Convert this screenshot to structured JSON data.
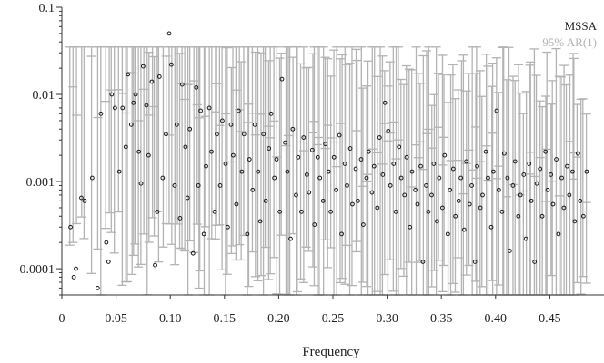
{
  "chart_data": {
    "type": "scatter",
    "title": "",
    "xlabel": "Frequency",
    "ylabel": "",
    "xlim": [
      0,
      0.5
    ],
    "ylim": [
      5e-05,
      0.1
    ],
    "yscale": "log",
    "grid": false,
    "legend_position": "top-right",
    "x_ticks": [
      {
        "value": 0,
        "label": "0"
      },
      {
        "value": 0.05,
        "label": "0.05"
      },
      {
        "value": 0.1,
        "label": "0.10"
      },
      {
        "value": 0.15,
        "label": "0.15"
      },
      {
        "value": 0.2,
        "label": "0.20"
      },
      {
        "value": 0.25,
        "label": "0.25"
      },
      {
        "value": 0.3,
        "label": "0.30"
      },
      {
        "value": 0.35,
        "label": "0.35"
      },
      {
        "value": 0.4,
        "label": "0.40"
      },
      {
        "value": 0.45,
        "label": "0.45"
      }
    ],
    "y_ticks": [
      {
        "value": 0.1,
        "label": "0.1"
      },
      {
        "value": 0.01,
        "label": "0.01"
      },
      {
        "value": 0.001,
        "label": "0.001"
      },
      {
        "value": 0.0001,
        "label": "0.0001"
      }
    ],
    "series": [
      {
        "name": "MSSA",
        "color": "#1a1a1a",
        "marker": "open-circle",
        "points": [
          [
            0.008,
            0.0003
          ],
          [
            0.011,
            8e-05
          ],
          [
            0.013,
            0.0001
          ],
          [
            0.018,
            0.00065
          ],
          [
            0.021,
            0.0006
          ],
          [
            0.028,
            0.0011
          ],
          [
            0.033,
            6e-05
          ],
          [
            0.036,
            0.006
          ],
          [
            0.041,
            0.0002
          ],
          [
            0.043,
            0.00012
          ],
          [
            0.046,
            0.01
          ],
          [
            0.049,
            0.007
          ],
          [
            0.053,
            0.0013
          ],
          [
            0.056,
            0.007
          ],
          [
            0.059,
            0.0025
          ],
          [
            0.061,
            0.017
          ],
          [
            0.064,
            0.0045
          ],
          [
            0.066,
            0.008
          ],
          [
            0.068,
            0.01
          ],
          [
            0.071,
            0.0022
          ],
          [
            0.073,
            0.00095
          ],
          [
            0.075,
            0.021
          ],
          [
            0.078,
            0.0075
          ],
          [
            0.08,
            0.002
          ],
          [
            0.083,
            0.014
          ],
          [
            0.086,
            0.00011
          ],
          [
            0.088,
            0.00045
          ],
          [
            0.09,
            0.016
          ],
          [
            0.093,
            0.0011
          ],
          [
            0.096,
            0.0035
          ],
          [
            0.099,
            0.05
          ],
          [
            0.101,
            0.022
          ],
          [
            0.104,
            0.0009
          ],
          [
            0.106,
            0.0045
          ],
          [
            0.109,
            0.00038
          ],
          [
            0.111,
            0.013
          ],
          [
            0.114,
            0.0025
          ],
          [
            0.116,
            0.00065
          ],
          [
            0.118,
            0.004
          ],
          [
            0.121,
            0.00015
          ],
          [
            0.124,
            0.012
          ],
          [
            0.126,
            0.0009
          ],
          [
            0.128,
            0.0065
          ],
          [
            0.131,
            0.00025
          ],
          [
            0.133,
            0.0015
          ],
          [
            0.136,
            0.007
          ],
          [
            0.138,
            0.0022
          ],
          [
            0.141,
            0.00045
          ],
          [
            0.143,
            0.0035
          ],
          [
            0.146,
            0.0009
          ],
          [
            0.148,
            0.005
          ],
          [
            0.151,
            0.0016
          ],
          [
            0.153,
            0.0003
          ],
          [
            0.156,
            0.0045
          ],
          [
            0.158,
            0.002
          ],
          [
            0.161,
            0.00055
          ],
          [
            0.163,
            0.0065
          ],
          [
            0.166,
            0.0013
          ],
          [
            0.168,
            0.0035
          ],
          [
            0.171,
            0.00025
          ],
          [
            0.173,
            0.0018
          ],
          [
            0.176,
            0.0008
          ],
          [
            0.178,
            0.0045
          ],
          [
            0.181,
            0.0013
          ],
          [
            0.183,
            0.00035
          ],
          [
            0.186,
            0.0035
          ],
          [
            0.188,
            0.0006
          ],
          [
            0.191,
            0.0024
          ],
          [
            0.193,
            0.006
          ],
          [
            0.196,
            0.0011
          ],
          [
            0.198,
            0.0018
          ],
          [
            0.201,
            0.00045
          ],
          [
            0.203,
            0.015
          ],
          [
            0.206,
            0.0028
          ],
          [
            0.208,
            0.0013
          ],
          [
            0.211,
            0.00022
          ],
          [
            0.213,
            0.004
          ],
          [
            0.216,
            0.0007
          ],
          [
            0.218,
            0.0019
          ],
          [
            0.221,
            0.00045
          ],
          [
            0.223,
            0.0032
          ],
          [
            0.226,
            0.0012
          ],
          [
            0.228,
            0.00075
          ],
          [
            0.231,
            0.0023
          ],
          [
            0.233,
            0.00032
          ],
          [
            0.236,
            0.0019
          ],
          [
            0.238,
            0.0011
          ],
          [
            0.241,
            0.0006
          ],
          [
            0.243,
            0.0027
          ],
          [
            0.246,
            0.0013
          ],
          [
            0.248,
            0.00045
          ],
          [
            0.251,
            0.0019
          ],
          [
            0.253,
            0.0008
          ],
          [
            0.256,
            0.0034
          ],
          [
            0.258,
            0.00025
          ],
          [
            0.261,
            0.0016
          ],
          [
            0.263,
            0.0009
          ],
          [
            0.266,
            0.0024
          ],
          [
            0.268,
            0.00055
          ],
          [
            0.271,
            0.0014
          ],
          [
            0.273,
            0.0006
          ],
          [
            0.276,
            0.0018
          ],
          [
            0.278,
            0.00032
          ],
          [
            0.281,
            0.0011
          ],
          [
            0.283,
            0.0022
          ],
          [
            0.286,
            0.00075
          ],
          [
            0.288,
            0.0015
          ],
          [
            0.291,
            0.0005
          ],
          [
            0.293,
            0.0032
          ],
          [
            0.296,
            0.0012
          ],
          [
            0.298,
            0.008
          ],
          [
            0.301,
            0.0038
          ],
          [
            0.303,
            0.0009
          ],
          [
            0.306,
            0.0016
          ],
          [
            0.308,
            0.00045
          ],
          [
            0.311,
            0.0025
          ],
          [
            0.313,
            0.0011
          ],
          [
            0.316,
            0.0007
          ],
          [
            0.318,
            0.0019
          ],
          [
            0.321,
            0.0003
          ],
          [
            0.323,
            0.0013
          ],
          [
            0.326,
            0.0008
          ],
          [
            0.328,
            0.00055
          ],
          [
            0.331,
            0.0015
          ],
          [
            0.333,
            0.00012
          ],
          [
            0.336,
            0.0009
          ],
          [
            0.338,
            0.00045
          ],
          [
            0.341,
            0.0007
          ],
          [
            0.343,
            0.0016
          ],
          [
            0.346,
            0.00035
          ],
          [
            0.348,
            0.0011
          ],
          [
            0.351,
            0.0005
          ],
          [
            0.353,
            0.002
          ],
          [
            0.356,
            0.00025
          ],
          [
            0.358,
            0.0008
          ],
          [
            0.361,
            0.0014
          ],
          [
            0.363,
            0.0004
          ],
          [
            0.366,
            0.0006
          ],
          [
            0.368,
            0.0011
          ],
          [
            0.371,
            0.00028
          ],
          [
            0.373,
            0.0017
          ],
          [
            0.376,
            0.00055
          ],
          [
            0.378,
            0.0009
          ],
          [
            0.381,
            0.00012
          ],
          [
            0.383,
            0.0015
          ],
          [
            0.386,
            0.0005
          ],
          [
            0.388,
            0.0007
          ],
          [
            0.391,
            0.0022
          ],
          [
            0.393,
            0.0011
          ],
          [
            0.396,
            0.0003
          ],
          [
            0.398,
            0.0013
          ],
          [
            0.401,
            0.0065
          ],
          [
            0.403,
            0.0008
          ],
          [
            0.406,
            0.00045
          ],
          [
            0.408,
            0.0021
          ],
          [
            0.411,
            0.0011
          ],
          [
            0.413,
            0.00016
          ],
          [
            0.416,
            0.0009
          ],
          [
            0.418,
            0.0017
          ],
          [
            0.421,
            0.0004
          ],
          [
            0.423,
            0.0007
          ],
          [
            0.426,
            0.0012
          ],
          [
            0.428,
            0.00022
          ],
          [
            0.431,
            0.0016
          ],
          [
            0.433,
            0.0006
          ],
          [
            0.436,
            0.00012
          ],
          [
            0.438,
            0.00095
          ],
          [
            0.441,
            0.0014
          ],
          [
            0.443,
            0.0004
          ],
          [
            0.446,
            0.0022
          ],
          [
            0.448,
            0.0008
          ],
          [
            0.451,
            0.0012
          ],
          [
            0.453,
            0.00055
          ],
          [
            0.456,
            0.0018
          ],
          [
            0.458,
            0.00025
          ],
          [
            0.461,
            0.0011
          ],
          [
            0.463,
            0.0005
          ],
          [
            0.466,
            0.0015
          ],
          [
            0.468,
            0.0007
          ],
          [
            0.471,
            0.0013
          ],
          [
            0.473,
            0.00035
          ],
          [
            0.476,
            0.0021
          ],
          [
            0.478,
            0.0006
          ],
          [
            0.481,
            0.0004
          ],
          [
            0.484,
            0.0013
          ]
        ]
      },
      {
        "name": "95% AR(1)",
        "color": "#b3b3b3",
        "marker": "error-bar"
      }
    ]
  }
}
